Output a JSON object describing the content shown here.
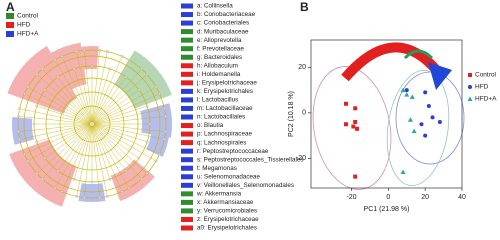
{
  "chart_data": [
    {
      "type": "cladogram",
      "panel_label": "A",
      "series": [
        {
          "name": "Control",
          "color": "#2e8b2e"
        },
        {
          "name": "HFD",
          "color": "#e32020"
        },
        {
          "name": "HFD+A",
          "color": "#2a3fd6"
        }
      ],
      "taxa": [
        {
          "label": "a: Collinsella",
          "color": "#2a3fd6"
        },
        {
          "label": "b: Coriobacteriaceae",
          "color": "#2a3fd6"
        },
        {
          "label": "c: Coriobacteriales",
          "color": "#2a3fd6"
        },
        {
          "label": "d: Muribaculaceae",
          "color": "#2e8b2e"
        },
        {
          "label": "e: Alloprevotella",
          "color": "#2e8b2e"
        },
        {
          "label": "f: Prevotellaceae",
          "color": "#2e8b2e"
        },
        {
          "label": "g: Bacteroidales",
          "color": "#2e8b2e"
        },
        {
          "label": "h: Allobaculum",
          "color": "#e32020"
        },
        {
          "label": "i: Holdemanella",
          "color": "#e32020"
        },
        {
          "label": "j: Erysipelotrichaceae",
          "color": "#e32020"
        },
        {
          "label": "k: Erysipelotrichales",
          "color": "#2a3fd6"
        },
        {
          "label": "l: Lactobacillus",
          "color": "#2a3fd6"
        },
        {
          "label": "m: Lactobacillaceae",
          "color": "#2a3fd6"
        },
        {
          "label": "n: Lactobacillales",
          "color": "#2a3fd6"
        },
        {
          "label": "o: Blautia",
          "color": "#e32020"
        },
        {
          "label": "p: Lachnospiraceae",
          "color": "#e32020"
        },
        {
          "label": "q: Lachnospirales",
          "color": "#e32020"
        },
        {
          "label": "r: Peptostreptococcaceae",
          "color": "#2a3fd6"
        },
        {
          "label": "s: Peptostreptococcales_Tissierellales",
          "color": "#2a3fd6"
        },
        {
          "label": "t: Megamonas",
          "color": "#2a3fd6"
        },
        {
          "label": "u: Selenomonadaceae",
          "color": "#2a3fd6"
        },
        {
          "label": "v: Veillonellales_Selenomonadales",
          "color": "#2a3fd6"
        },
        {
          "label": "w: Akkermansia",
          "color": "#2e8b2e"
        },
        {
          "label": "x: Akkermansiaceae",
          "color": "#2e8b2e"
        },
        {
          "label": "y: Verrucomicrobiales",
          "color": "#2e8b2e"
        },
        {
          "label": "z: Erysipelotrichaceae",
          "color": "#e32020"
        },
        {
          "label": "a0: Erysipelotrichales",
          "color": "#e32020"
        }
      ]
    },
    {
      "type": "scatter",
      "panel_label": "B",
      "x_label": "PC1 (21.98 %)",
      "y_label": "PC2 (10.18 %)",
      "xlim": [
        -42,
        40
      ],
      "ylim": [
        -33,
        32
      ],
      "xticks": [
        -20,
        0,
        20,
        40
      ],
      "yticks": [
        -20,
        0,
        20
      ],
      "series": [
        {
          "name": "Control",
          "color": "#e32020",
          "marker": "square",
          "x": [
            -23,
            -18,
            -18,
            -19,
            -17,
            -23,
            -18
          ],
          "values": [
            4,
            2,
            -4,
            -6,
            -7,
            -5,
            -28
          ]
        },
        {
          "name": "HFD",
          "color": "#2a3fd6",
          "marker": "circle",
          "x": [
            20,
            22,
            24,
            18,
            20,
            28,
            10
          ],
          "values": [
            9,
            3,
            -2,
            -5,
            -10,
            -4,
            10
          ]
        },
        {
          "name": "HFD+A",
          "color": "#2aa89a",
          "marker": "triangle",
          "x": [
            8,
            10,
            13,
            12,
            14,
            8
          ],
          "values": [
            10,
            8,
            7,
            -3,
            -8,
            -26
          ]
        }
      ]
    }
  ]
}
